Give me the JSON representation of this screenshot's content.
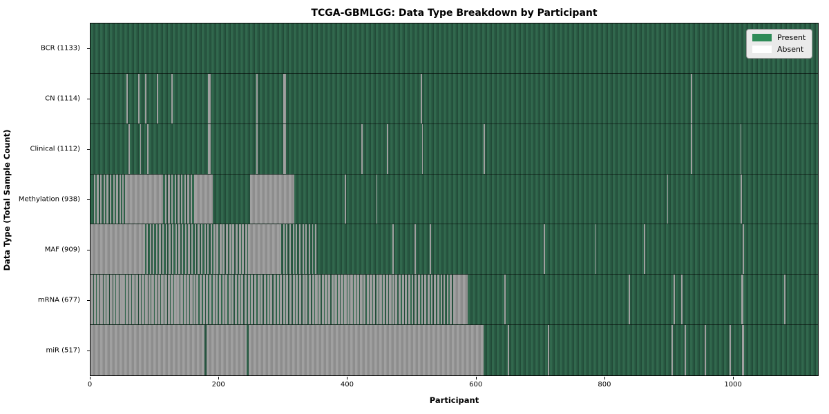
{
  "title": "TCGA-GBMLGG: Data Type Breakdown by Participant",
  "colors": {
    "present_legend": "#2e8b57",
    "present_light": "#31684d",
    "present_dark": "#275540",
    "absent_light": "#a0a0a0",
    "absent_dark": "#8d8d8d",
    "absent_legend": "#ffffff"
  },
  "legend": {
    "items": [
      {
        "label": "Present",
        "color_key": "present_legend"
      },
      {
        "label": "Absent",
        "color_key": "absent_legend"
      }
    ]
  },
  "chart_data": {
    "type": "heatmap",
    "title": "TCGA-GBMLGG: Data Type Breakdown by Participant",
    "xlabel": "Participant",
    "ylabel": "Data Type (Total Sample Count)",
    "x_range": [
      0,
      1133
    ],
    "x_ticks": [
      0,
      200,
      400,
      600,
      800,
      1000
    ],
    "grid": false,
    "legend_position": "upper right",
    "legend_entries": [
      "Present",
      "Absent"
    ],
    "categories": [
      "BCR (1133)",
      "CN (1114)",
      "Clinical (1112)",
      "Methylation (938)",
      "MAF (909)",
      "mRNA (677)",
      "miR (517)"
    ],
    "rows": [
      {
        "label": "BCR (1133)",
        "data_type": "BCR",
        "present_count": 1133,
        "absent_solid": [],
        "absent_mixed": []
      },
      {
        "label": "CN (1114)",
        "data_type": "CN",
        "present_count": 1114,
        "absent_solid": [
          [
            56,
            58
          ],
          [
            74,
            76
          ],
          [
            85,
            87
          ],
          [
            103,
            105
          ],
          [
            126,
            128
          ],
          [
            183,
            187
          ],
          [
            258,
            260
          ],
          [
            300,
            304
          ],
          [
            514,
            516
          ],
          [
            935,
            937
          ]
        ],
        "absent_mixed": []
      },
      {
        "label": "Clinical (1112)",
        "data_type": "Clinical",
        "present_count": 1112,
        "absent_solid": [
          [
            59,
            61
          ],
          [
            77,
            79
          ],
          [
            88,
            90
          ],
          [
            183,
            187
          ],
          [
            258,
            260
          ],
          [
            300,
            304
          ],
          [
            422,
            424
          ],
          [
            462,
            464
          ],
          [
            516,
            518
          ],
          [
            612,
            614
          ],
          [
            935,
            937
          ],
          [
            1012,
            1014
          ]
        ],
        "absent_mixed": []
      },
      {
        "label": "Methylation (938)",
        "data_type": "Methylation",
        "present_count": 938,
        "absent_solid": [
          [
            54,
            113
          ],
          [
            162,
            191
          ],
          [
            249,
            317
          ],
          [
            396,
            398
          ],
          [
            445,
            447
          ],
          [
            898,
            900
          ],
          [
            1013,
            1015
          ]
        ],
        "absent_mixed": [
          [
            5,
            52,
            0.55
          ],
          [
            116,
            162,
            0.5
          ]
        ]
      },
      {
        "label": "MAF (909)",
        "data_type": "MAF",
        "present_count": 909,
        "absent_solid": [
          [
            0,
            82
          ],
          [
            245,
            295
          ],
          [
            470,
            472
          ],
          [
            505,
            507
          ],
          [
            528,
            530
          ],
          [
            706,
            708
          ],
          [
            786,
            788
          ],
          [
            862,
            864
          ],
          [
            1016,
            1018
          ]
        ],
        "absent_mixed": [
          [
            82,
            196,
            0.5
          ],
          [
            196,
            245,
            0.65
          ],
          [
            295,
            355,
            0.4
          ]
        ]
      },
      {
        "label": "mRNA (677)",
        "data_type": "mRNA",
        "present_count": 677,
        "absent_solid": [
          [
            565,
            588
          ],
          [
            645,
            647
          ],
          [
            838,
            840
          ],
          [
            908,
            910
          ],
          [
            920,
            922
          ],
          [
            1014,
            1017
          ],
          [
            1080,
            1082
          ]
        ],
        "absent_mixed": [
          [
            0,
            160,
            0.8
          ],
          [
            160,
            340,
            0.65
          ],
          [
            340,
            470,
            0.75
          ],
          [
            470,
            545,
            0.6
          ],
          [
            545,
            565,
            0.5
          ]
        ]
      },
      {
        "label": "miR (517)",
        "data_type": "miR",
        "present_count": 517,
        "absent_solid": [
          [
            0,
            178
          ],
          [
            181,
            243
          ],
          [
            246,
            612
          ],
          [
            650,
            652
          ],
          [
            712,
            714
          ],
          [
            905,
            907
          ],
          [
            925,
            927
          ],
          [
            957,
            959
          ],
          [
            995,
            997
          ],
          [
            1015,
            1018
          ]
        ],
        "absent_mixed": []
      }
    ]
  }
}
